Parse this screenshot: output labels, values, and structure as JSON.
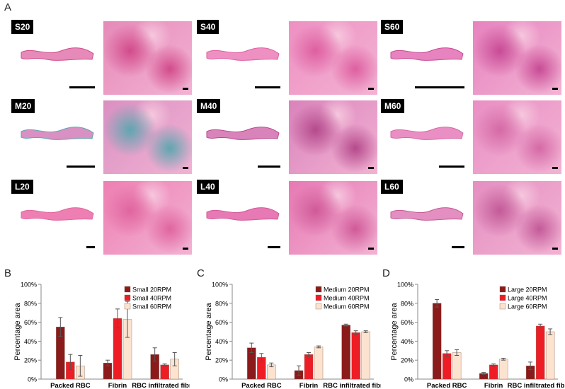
{
  "figure": {
    "panel_a_letter": "A",
    "panel_b_letter": "B",
    "panel_c_letter": "C",
    "panel_d_letter": "D",
    "tiles": [
      {
        "label": "S20",
        "tone": "#e68ab9",
        "blob": "#d24b8b"
      },
      {
        "label": "S40",
        "tone": "#ee90c2",
        "blob": "#de5fa0"
      },
      {
        "label": "S60",
        "tone": "#e783bf",
        "blob": "#c84b95"
      },
      {
        "label": "M20",
        "tone": "#d990c2",
        "blob": "#5fa6b0"
      },
      {
        "label": "M40",
        "tone": "#d983bb",
        "blob": "#b54a8c"
      },
      {
        "label": "M60",
        "tone": "#e98fc4",
        "blob": "#d56aa6"
      },
      {
        "label": "L20",
        "tone": "#ee7fb3",
        "blob": "#e0659f"
      },
      {
        "label": "L40",
        "tone": "#e779b4",
        "blob": "#d05a98"
      },
      {
        "label": "L60",
        "tone": "#e48fc1",
        "blob": "#c35a98"
      }
    ]
  },
  "chart_data": [
    {
      "type": "bar",
      "panel": "B",
      "categories": [
        "Packed RBC",
        "Fibrin",
        "RBC infiltrated fibrin"
      ],
      "ylabel": "Percentage area",
      "ylim": [
        0,
        100
      ],
      "yticks": [
        "0%",
        "20%",
        "40%",
        "60%",
        "80%",
        "100%"
      ],
      "legend_position": "top-right",
      "series": [
        {
          "name": "Small 20RPM",
          "color": "#8b1a1a",
          "values": [
            55,
            17,
            26
          ],
          "errors": [
            10,
            3,
            7
          ]
        },
        {
          "name": "Small 40RPM",
          "color": "#ee1c25",
          "values": [
            18,
            64,
            15
          ],
          "errors": [
            8,
            10,
            1
          ]
        },
        {
          "name": "Small 60RPM",
          "color": "#fbe3d0",
          "values": [
            14,
            63,
            21
          ],
          "errors": [
            11,
            19,
            7
          ]
        }
      ]
    },
    {
      "type": "bar",
      "panel": "C",
      "categories": [
        "Packed RBC",
        "Fibrin",
        "RBC infiltrated fibrin"
      ],
      "ylabel": "Percentage area",
      "ylim": [
        0,
        100
      ],
      "yticks": [
        "0%",
        "20%",
        "40%",
        "60%",
        "80%",
        "100%"
      ],
      "legend_position": "top-right",
      "series": [
        {
          "name": "Medium 20RPM",
          "color": "#8b1a1a",
          "values": [
            33,
            9,
            57
          ],
          "errors": [
            5,
            5,
            1
          ]
        },
        {
          "name": "Medium 40RPM",
          "color": "#ee1c25",
          "values": [
            23,
            26,
            49
          ],
          "errors": [
            4,
            2,
            2
          ]
        },
        {
          "name": "Medium 60RPM",
          "color": "#fbe3d0",
          "values": [
            15,
            34,
            50
          ],
          "errors": [
            2,
            1,
            1
          ]
        }
      ]
    },
    {
      "type": "bar",
      "panel": "D",
      "categories": [
        "Packed RBC",
        "Fibrin",
        "RBC infiltrated fibrin"
      ],
      "ylabel": "Percentage area",
      "ylim": [
        0,
        100
      ],
      "yticks": [
        "0%",
        "20%",
        "40%",
        "60%",
        "80%",
        "100%"
      ],
      "legend_position": "top-right",
      "series": [
        {
          "name": "Large 20RPM",
          "color": "#8b1a1a",
          "values": [
            80,
            6,
            14
          ],
          "errors": [
            4,
            1,
            4
          ]
        },
        {
          "name": "Large 40RPM",
          "color": "#ee1c25",
          "values": [
            27,
            15,
            56
          ],
          "errors": [
            3,
            1,
            2
          ]
        },
        {
          "name": "Large 60RPM",
          "color": "#fbe3d0",
          "values": [
            28,
            21,
            50
          ],
          "errors": [
            3,
            1,
            3
          ]
        }
      ]
    }
  ]
}
